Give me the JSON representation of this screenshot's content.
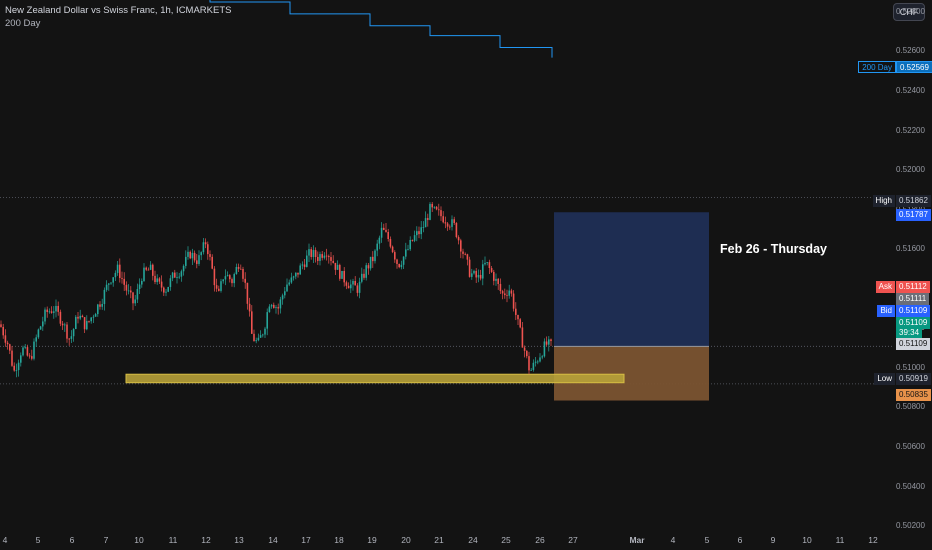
{
  "header": {
    "title": "New Zealand Dollar vs Swiss Franc, 1h, ICMARKETS",
    "indicator": "200 Day",
    "currency_button": "CHF"
  },
  "annotation": {
    "text": "Feb 26 - Thursday"
  },
  "colors": {
    "background": "#131313",
    "candle_up": "#26a69a",
    "candle_down": "#ef5350",
    "ma_line": "#2196f3",
    "target_zone": "#1f2e55",
    "stop_zone": "#7a5330",
    "support_zone": "#b8a23a"
  },
  "price_axis": {
    "ticks": [
      "0.52800",
      "0.52600",
      "0.52400",
      "0.52200",
      "0.52000",
      "0.51800",
      "0.51600",
      "0.51400",
      "0.51200",
      "0.51000",
      "0.50800",
      "0.50600",
      "0.50400",
      "0.50200"
    ],
    "labels": {
      "ma": {
        "tag": "200 Day",
        "value": "0.52569"
      },
      "high": {
        "tag": "High",
        "value": "0.51862"
      },
      "target": {
        "value": "0.51787"
      },
      "ask": {
        "tag": "Ask",
        "value": "0.51112"
      },
      "ask_sub": {
        "value": "0.51111"
      },
      "bid": {
        "tag": "Bid",
        "value": "0.51109"
      },
      "last": {
        "value": "0.51109",
        "countdown": "39:34"
      },
      "entry": {
        "value": "0.51109"
      },
      "low": {
        "tag": "Low",
        "value": "0.50919"
      },
      "stop": {
        "value": "0.50835"
      }
    }
  },
  "time_axis": {
    "ticks": [
      "4",
      "5",
      "6",
      "7",
      "10",
      "11",
      "12",
      "13",
      "14",
      "17",
      "18",
      "19",
      "20",
      "21",
      "24",
      "25",
      "26",
      "27",
      "Mar",
      "4",
      "5",
      "6",
      "9",
      "10",
      "11",
      "12"
    ]
  },
  "chart_data": {
    "type": "candlestick",
    "symbol": "NZDCHF",
    "timeframe": "1h",
    "ylim": [
      0.5015,
      0.5285
    ],
    "session_high": 0.51862,
    "session_low": 0.50919,
    "last_price": 0.51109,
    "moving_average": {
      "name": "200 Day",
      "points": [
        [
          0,
          0.5294
        ],
        [
          80,
          0.5292
        ],
        [
          140,
          0.5289
        ],
        [
          210,
          0.5285
        ],
        [
          290,
          0.5279
        ],
        [
          370,
          0.5273
        ],
        [
          430,
          0.5268
        ],
        [
          500,
          0.5262
        ],
        [
          552,
          0.52569
        ]
      ]
    },
    "position": {
      "entry": 0.51109,
      "target": 0.51787,
      "stop": 0.50835
    },
    "support_zone": [
      0.50925,
      0.50968
    ],
    "price_path": [
      [
        0,
        0.5122
      ],
      [
        8,
        0.5112
      ],
      [
        14,
        0.5098
      ],
      [
        22,
        0.511
      ],
      [
        30,
        0.5104
      ],
      [
        38,
        0.5118
      ],
      [
        46,
        0.5128
      ],
      [
        54,
        0.513
      ],
      [
        62,
        0.5124
      ],
      [
        70,
        0.5114
      ],
      [
        78,
        0.5127
      ],
      [
        86,
        0.5121
      ],
      [
        94,
        0.5128
      ],
      [
        102,
        0.5135
      ],
      [
        110,
        0.5145
      ],
      [
        118,
        0.515
      ],
      [
        126,
        0.514
      ],
      [
        134,
        0.5132
      ],
      [
        142,
        0.5147
      ],
      [
        150,
        0.515
      ],
      [
        158,
        0.5142
      ],
      [
        166,
        0.514
      ],
      [
        174,
        0.5147
      ],
      [
        182,
        0.515
      ],
      [
        190,
        0.5158
      ],
      [
        198,
        0.5154
      ],
      [
        206,
        0.5164
      ],
      [
        212,
        0.515
      ],
      [
        218,
        0.5135
      ],
      [
        224,
        0.5148
      ],
      [
        232,
        0.5144
      ],
      [
        240,
        0.5155
      ],
      [
        246,
        0.514
      ],
      [
        252,
        0.5116
      ],
      [
        258,
        0.5112
      ],
      [
        264,
        0.512
      ],
      [
        270,
        0.5135
      ],
      [
        278,
        0.513
      ],
      [
        286,
        0.5142
      ],
      [
        294,
        0.5145
      ],
      [
        302,
        0.5152
      ],
      [
        310,
        0.5158
      ],
      [
        318,
        0.5156
      ],
      [
        326,
        0.516
      ],
      [
        334,
        0.5153
      ],
      [
        342,
        0.5146
      ],
      [
        350,
        0.5142
      ],
      [
        358,
        0.514
      ],
      [
        366,
        0.515
      ],
      [
        374,
        0.5156
      ],
      [
        382,
        0.517
      ],
      [
        390,
        0.5164
      ],
      [
        398,
        0.5152
      ],
      [
        406,
        0.5158
      ],
      [
        414,
        0.5166
      ],
      [
        422,
        0.517
      ],
      [
        430,
        0.518
      ],
      [
        438,
        0.5178
      ],
      [
        446,
        0.5175
      ],
      [
        454,
        0.5172
      ],
      [
        462,
        0.516
      ],
      [
        470,
        0.5148
      ],
      [
        478,
        0.5145
      ],
      [
        486,
        0.5153
      ],
      [
        494,
        0.5146
      ],
      [
        502,
        0.5137
      ],
      [
        510,
        0.514
      ],
      [
        518,
        0.5122
      ],
      [
        524,
        0.511
      ],
      [
        530,
        0.5098
      ],
      [
        538,
        0.5105
      ],
      [
        546,
        0.5112
      ],
      [
        552,
        0.51109
      ]
    ]
  }
}
